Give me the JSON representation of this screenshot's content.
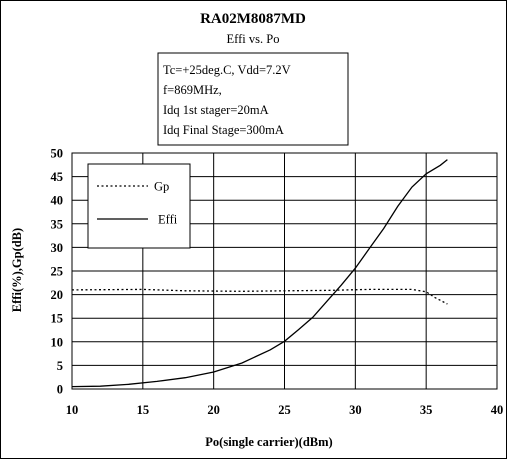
{
  "chart_data": {
    "type": "line",
    "title": "RA02M8087MD",
    "subtitle": "Effi vs. Po",
    "conditions": [
      "Tc=+25deg.C, Vdd=7.2V",
      "f=869MHz,",
      "Idq 1st stager=20mA",
      "Idq Final Stage=300mA"
    ],
    "xlabel": "Po(single carrier)(dBm)",
    "ylabel": "Effi(%),Gp(dB)",
    "xlim": [
      10,
      40
    ],
    "ylim": [
      0,
      50
    ],
    "x_ticks": [
      10,
      15,
      20,
      25,
      30,
      35,
      40
    ],
    "y_ticks": [
      0,
      5,
      10,
      15,
      20,
      25,
      30,
      35,
      40,
      45,
      50
    ],
    "grid": true,
    "legend_position": "top-left",
    "series": [
      {
        "name": "Gp",
        "style": "dotted",
        "color": "#000000",
        "points": [
          [
            10,
            21.0
          ],
          [
            15,
            21.1
          ],
          [
            18,
            20.8
          ],
          [
            22,
            20.7
          ],
          [
            25,
            20.8
          ],
          [
            28,
            20.9
          ],
          [
            31,
            21.1
          ],
          [
            34,
            21.1
          ],
          [
            35,
            20.6
          ],
          [
            35.6,
            19.4
          ],
          [
            36.5,
            18.0
          ]
        ]
      },
      {
        "name": "Effi",
        "style": "solid",
        "color": "#000000",
        "points": [
          [
            10,
            0.5
          ],
          [
            12,
            0.6
          ],
          [
            14,
            1.0
          ],
          [
            16,
            1.6
          ],
          [
            18,
            2.4
          ],
          [
            20,
            3.6
          ],
          [
            22,
            5.5
          ],
          [
            24,
            8.3
          ],
          [
            25,
            10.1
          ],
          [
            26,
            12.6
          ],
          [
            27,
            15.2
          ],
          [
            28,
            18.6
          ],
          [
            29,
            22.0
          ],
          [
            30,
            25.6
          ],
          [
            31,
            29.8
          ],
          [
            32,
            34.0
          ],
          [
            33,
            38.7
          ],
          [
            34,
            42.8
          ],
          [
            35,
            45.6
          ],
          [
            36,
            47.4
          ],
          [
            36.5,
            48.6
          ]
        ]
      }
    ]
  }
}
